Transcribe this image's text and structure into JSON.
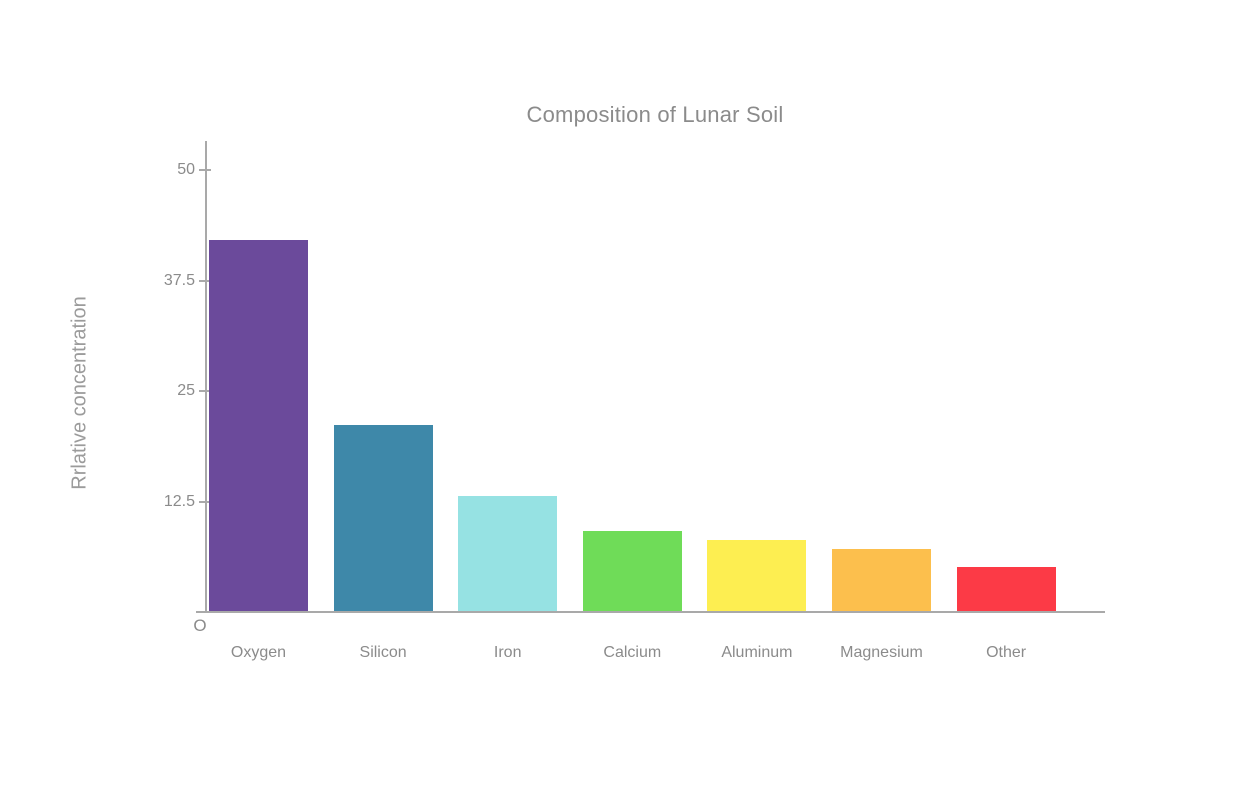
{
  "page": {
    "background": "#ffffff"
  },
  "chart_data": {
    "type": "bar",
    "title": "Composition of Lunar Soil",
    "xlabel": "",
    "ylabel": "Rrlative concentration",
    "categories": [
      "Oxygen",
      "Silicon",
      "Iron",
      "Calcium",
      "Aluminum",
      "Magnesium",
      "Other"
    ],
    "values": [
      42,
      21,
      13,
      9,
      8,
      7,
      5
    ],
    "bar_colors": [
      "#6b4a9b",
      "#3e88a9",
      "#96e2e3",
      "#6fdc58",
      "#fdee51",
      "#fcbf4d",
      "#fc3a46"
    ],
    "yticks": [
      {
        "value": 50,
        "label": "50"
      },
      {
        "value": 37.5,
        "label": "37.5"
      },
      {
        "value": 25,
        "label": "25"
      },
      {
        "value": 12.5,
        "label": "12.5"
      },
      {
        "value": 0,
        "label": "O"
      }
    ],
    "ylim": [
      0,
      53
    ],
    "grid": false,
    "legend": null,
    "colors": {
      "title_text": "#8b8b8b",
      "axis_text": "#8b8b8b",
      "y_axis_label_text": "#9b9b9b",
      "axis_line": "#a9a9a9"
    }
  }
}
